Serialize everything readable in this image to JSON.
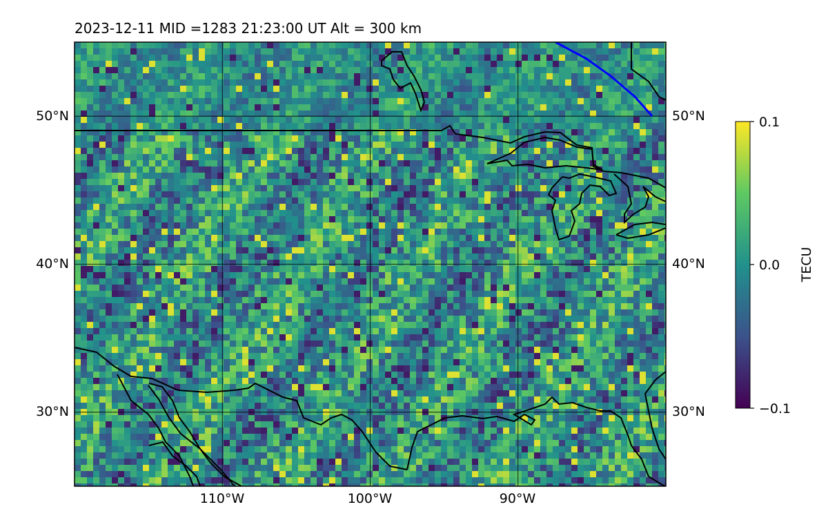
{
  "header": {
    "title": "2023-12-11  MID =1283    21:23:00  UT  Alt = 300 km"
  },
  "map": {
    "lat_range": [
      25,
      55
    ],
    "lon_range": [
      -120,
      -80
    ],
    "lat_ticks": [
      {
        "value": 30,
        "label": "30°N"
      },
      {
        "value": 40,
        "label": "40°N"
      },
      {
        "value": 50,
        "label": "50°N"
      }
    ],
    "lon_ticks": [
      {
        "value": -110,
        "label": "110°W"
      },
      {
        "value": -100,
        "label": "100°W"
      },
      {
        "value": -90,
        "label": "90°W"
      }
    ],
    "gridlines": true,
    "coastline_color": "#000000",
    "terminator_color": "#0000ff"
  },
  "colorbar": {
    "label": "TECU",
    "min": -0.1,
    "max": 0.1,
    "ticks": [
      {
        "value": 0.1,
        "label": "0.1"
      },
      {
        "value": 0.0,
        "label": "0.0"
      },
      {
        "value": -0.1,
        "label": "−0.1"
      }
    ],
    "colormap": [
      "#440154",
      "#3b528b",
      "#21918c",
      "#5ec962",
      "#fde725"
    ]
  }
}
